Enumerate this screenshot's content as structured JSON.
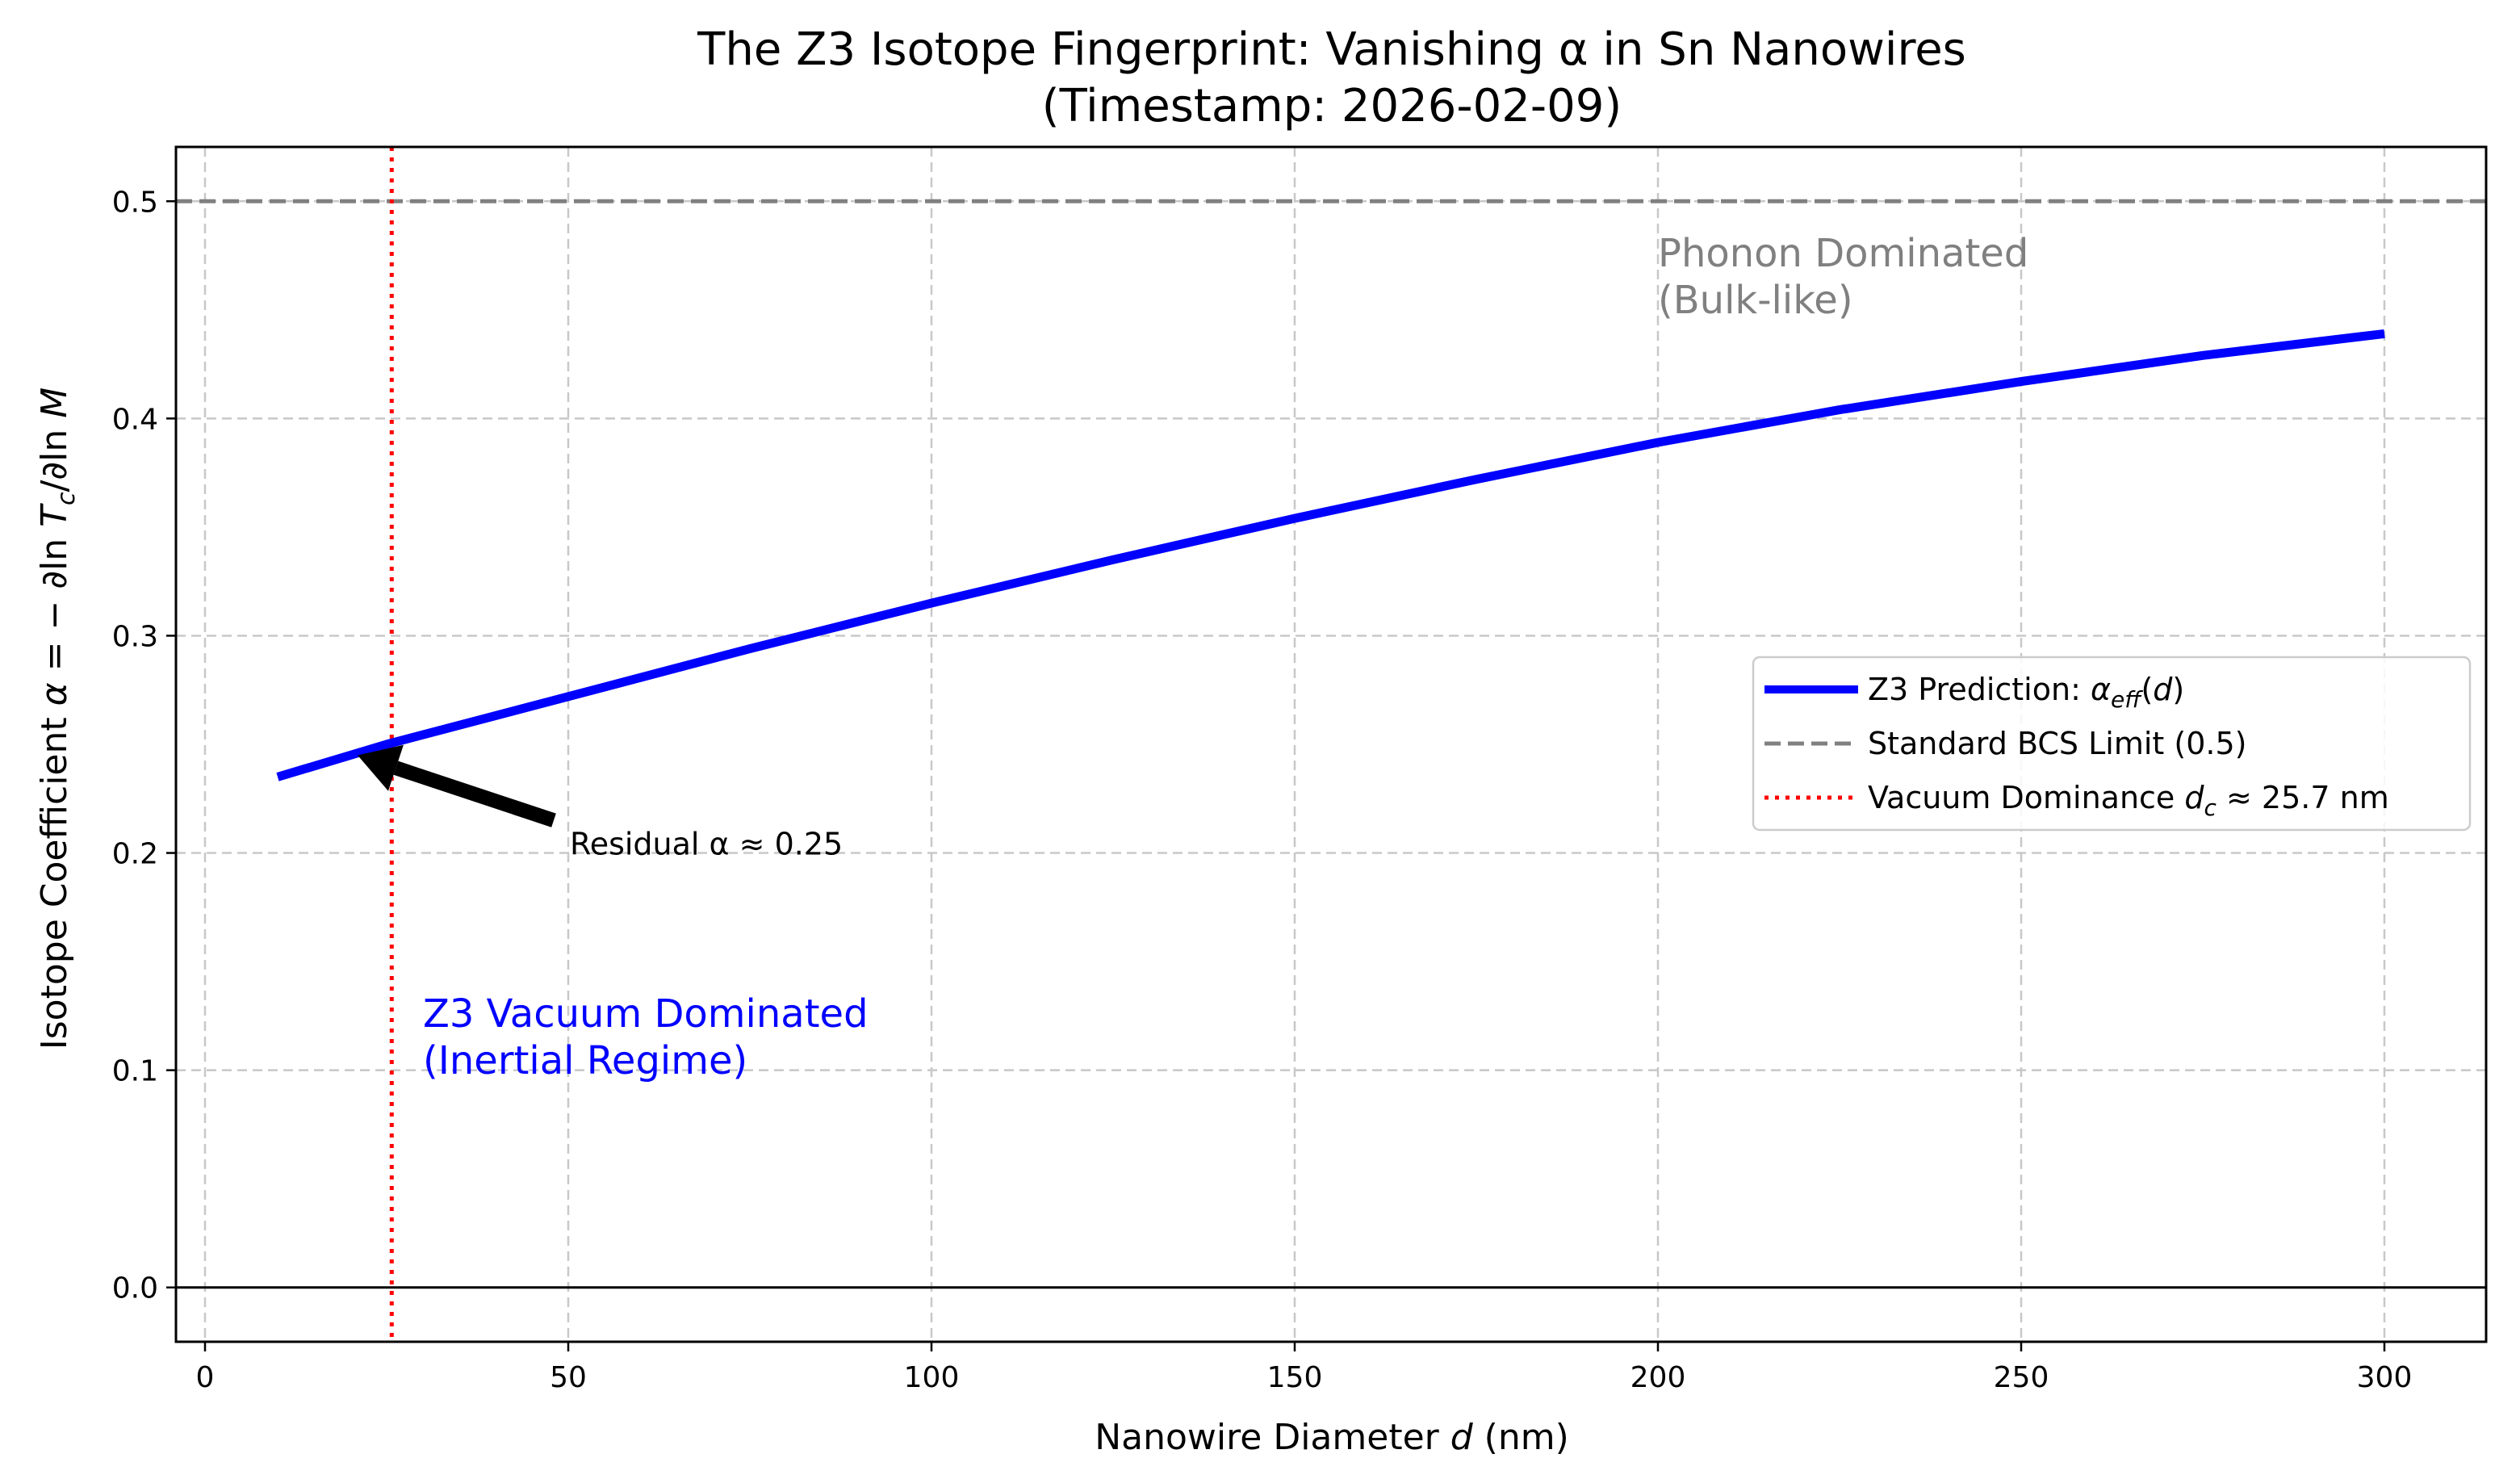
{
  "chart_data": {
    "type": "line",
    "title_line1": "The Z3 Isotope Fingerprint: Vanishing α in Sn Nanowires",
    "title_line2": "(Timestamp: 2026-02-09)",
    "xlabel": "Nanowire Diameter d (nm)",
    "ylabel": "Isotope Coefficient α = −∂ln T_c/∂ln M",
    "xlim": [
      -4,
      314
    ],
    "ylim": [
      -0.025,
      0.525
    ],
    "xticks": [
      0,
      50,
      100,
      150,
      200,
      250,
      300
    ],
    "xtick_labels": [
      "0",
      "50",
      "100",
      "150",
      "200",
      "250",
      "300"
    ],
    "yticks": [
      0.0,
      0.1,
      0.2,
      0.3,
      0.4,
      0.5
    ],
    "ytick_labels": [
      "0.0",
      "0.1",
      "0.2",
      "0.3",
      "0.4",
      "0.5"
    ],
    "grid": true,
    "legend_position": "center-right",
    "series": [
      {
        "name": "Z3 Prediction: α_eff(d)",
        "color": "#0000ff",
        "style": "solid",
        "x": [
          10,
          25,
          50,
          75,
          100,
          125,
          150,
          175,
          200,
          225,
          250,
          275,
          300
        ],
        "y": [
          0.235,
          0.25,
          0.272,
          0.294,
          0.315,
          0.335,
          0.354,
          0.372,
          0.389,
          0.404,
          0.417,
          0.429,
          0.439
        ]
      },
      {
        "name": "Standard BCS Limit (0.5)",
        "color": "#808080",
        "style": "dashed",
        "orientation": "horizontal",
        "y": 0.5
      },
      {
        "name": "Vacuum Dominance d_c ≈ 25.7 nm",
        "color": "#ff0000",
        "style": "dotted",
        "orientation": "vertical",
        "x": 25.7
      }
    ],
    "zero_line": {
      "y": 0.0,
      "color": "#000000"
    },
    "annotations": [
      {
        "text": "Residual α ≈ 0.25",
        "text_at": [
          50,
          0.2
        ],
        "arrow_tail": [
          48,
          0.215
        ],
        "arrow_head": [
          21,
          0.245
        ]
      },
      {
        "lines": [
          "Z3 Vacuum Dominated",
          "(Inertial Regime)"
        ],
        "at": [
          30,
          0.12
        ],
        "color": "#0000ff"
      },
      {
        "lines": [
          "Phonon Dominated",
          "(Bulk-like)"
        ],
        "at": [
          200,
          0.47
        ],
        "color": "#808080"
      }
    ]
  }
}
